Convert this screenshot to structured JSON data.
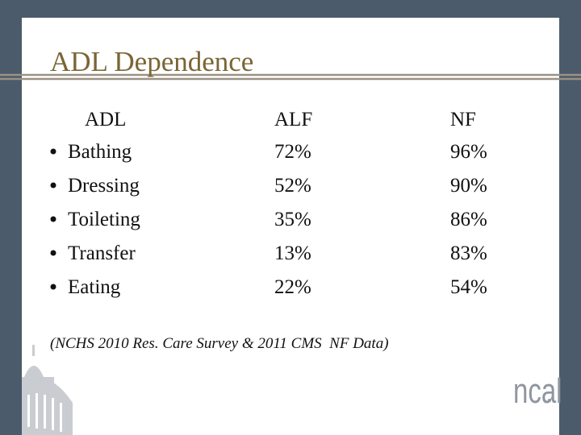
{
  "title": "ADL Dependence",
  "table": {
    "header": [
      "ADL",
      "ALF",
      "NF"
    ],
    "rows": [
      [
        "Bathing",
        "72%",
        "96%"
      ],
      [
        "Dressing",
        "52%",
        "90%"
      ],
      [
        "Toileting",
        "35%",
        "86%"
      ],
      [
        "Transfer",
        "13%",
        "83%"
      ],
      [
        "Eating",
        "22%",
        "54%"
      ]
    ]
  },
  "footnote": "(NCHS 2010 Res. Care Survey & 2011 CMS  NF Data)",
  "logo": "ncal"
}
